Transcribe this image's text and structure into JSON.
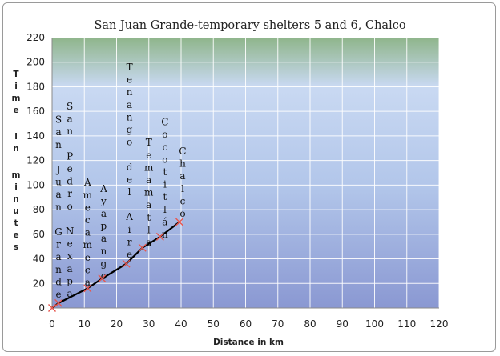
{
  "chart_data": {
    "type": "line",
    "title": "San Juan Grande-temporary shelters 5 and 6, Chalco",
    "xlabel": "Distance in km",
    "ylabel": "Time in minutes",
    "xlim": [
      0,
      120
    ],
    "ylim": [
      0,
      220
    ],
    "x_ticks": [
      0,
      10,
      20,
      30,
      40,
      50,
      60,
      70,
      80,
      90,
      100,
      110,
      120
    ],
    "y_ticks": [
      0,
      20,
      40,
      60,
      80,
      100,
      120,
      140,
      160,
      180,
      200,
      220
    ],
    "grid": true,
    "legend": "none",
    "line_color": "#000000",
    "marker_color": "#e8574f",
    "background_gradient": [
      "#c9d9f2",
      "#b2c6ea",
      "#8a98d2",
      "#8fb58b"
    ],
    "series": [
      {
        "values": [
          {
            "x": 0,
            "y": 0
          },
          {
            "x": 2,
            "y": 4
          },
          {
            "x": 11,
            "y": 16
          },
          {
            "x": 15.5,
            "y": 24
          },
          {
            "x": 23,
            "y": 36
          },
          {
            "x": 28,
            "y": 49
          },
          {
            "x": 33.5,
            "y": 58
          },
          {
            "x": 39.5,
            "y": 70
          }
        ]
      }
    ],
    "annotations": [
      {
        "text": "San Juan Grande",
        "x": 2
      },
      {
        "text": "San Pedro Nexapa",
        "x": 5.5
      },
      {
        "text": "Amecameca",
        "x": 11
      },
      {
        "text": "Ayapango",
        "x": 16
      },
      {
        "text": "Tenango del Aire",
        "x": 24
      },
      {
        "text": "Temamatla",
        "x": 30
      },
      {
        "text": "Cocotitlán",
        "x": 35
      },
      {
        "text": "Chalco",
        "x": 40.5
      }
    ]
  }
}
